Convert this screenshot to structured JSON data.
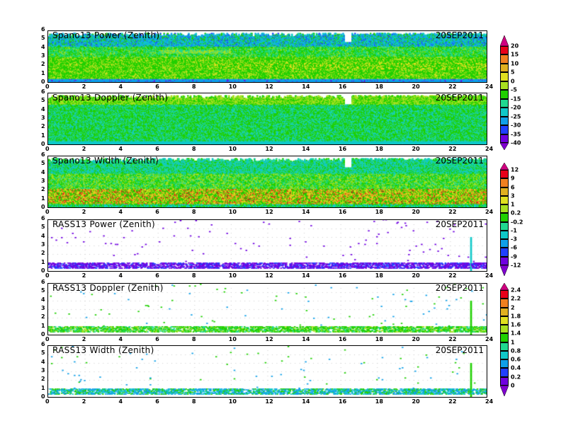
{
  "chart_data": [
    {
      "type": "heatmap",
      "title": "Spano13 Power (Zenith)",
      "date": "20SEP2011",
      "xlim": [
        0,
        24
      ],
      "ylim": [
        0,
        6
      ],
      "xticks": [
        0,
        2,
        4,
        6,
        8,
        10,
        12,
        14,
        16,
        18,
        20,
        22,
        24
      ],
      "yticks": [
        0,
        1,
        2,
        3,
        4,
        5,
        6
      ],
      "pattern": "power"
    },
    {
      "type": "heatmap",
      "title": "Spano13 Doppler (Zenith)",
      "date": "20SEP2011",
      "xlim": [
        0,
        24
      ],
      "ylim": [
        0,
        6
      ],
      "xticks": [
        0,
        2,
        4,
        6,
        8,
        10,
        12,
        14,
        16,
        18,
        20,
        22,
        24
      ],
      "yticks": [
        0,
        1,
        2,
        3,
        4,
        5,
        6
      ],
      "pattern": "doppler"
    },
    {
      "type": "heatmap",
      "title": "Spano13 Width (Zenith)",
      "date": "20SEP2011",
      "xlim": [
        0,
        24
      ],
      "ylim": [
        0,
        6
      ],
      "xticks": [
        0,
        2,
        4,
        6,
        8,
        10,
        12,
        14,
        16,
        18,
        20,
        22,
        24
      ],
      "yticks": [
        0,
        1,
        2,
        3,
        4,
        5,
        6
      ],
      "pattern": "width"
    },
    {
      "type": "heatmap",
      "title": "RASS13 Power (Zenith)",
      "date": "20SEP2011",
      "xlim": [
        0,
        24
      ],
      "ylim": [
        0,
        6
      ],
      "xticks": [
        0,
        2,
        4,
        6,
        8,
        10,
        12,
        14,
        16,
        18,
        20,
        22,
        24
      ],
      "yticks": [
        0,
        1,
        2,
        3,
        4,
        5,
        6
      ],
      "pattern": "rass-power"
    },
    {
      "type": "heatmap",
      "title": "RASS13 Doppler (Zenith)",
      "date": "20SEP2011",
      "xlim": [
        0,
        24
      ],
      "ylim": [
        0,
        6
      ],
      "xticks": [
        0,
        2,
        4,
        6,
        8,
        10,
        12,
        14,
        16,
        18,
        20,
        22,
        24
      ],
      "yticks": [
        0,
        1,
        2,
        3,
        4,
        5,
        6
      ],
      "pattern": "rass-doppler"
    },
    {
      "type": "heatmap",
      "title": "RASS13 Width (Zenith)",
      "date": "20SEP2011",
      "xlim": [
        0,
        24
      ],
      "ylim": [
        0,
        6
      ],
      "xticks": [
        0,
        2,
        4,
        6,
        8,
        10,
        12,
        14,
        16,
        18,
        20,
        22,
        24
      ],
      "yticks": [
        0,
        1,
        2,
        3,
        4,
        5,
        6
      ],
      "pattern": "rass-width"
    }
  ],
  "colorbars": [
    {
      "labels": [
        "20",
        "15",
        "10",
        "5",
        "0",
        "-5",
        "-15",
        "-20",
        "-25",
        "-30",
        "-35",
        "-40"
      ]
    },
    {
      "labels": [
        "12",
        "9",
        "6",
        "3",
        "1",
        "0.2",
        "-0.2",
        "-1",
        "-3",
        "-6",
        "-9",
        "-12"
      ]
    },
    {
      "labels": [
        "2.4",
        "2.2",
        "2",
        "1.8",
        "1.6",
        "1.4",
        "1",
        "0.8",
        "0.6",
        "0.4",
        "0.2",
        "0"
      ]
    }
  ],
  "palette": [
    "#e8001a",
    "#f08020",
    "#e0b020",
    "#e0e020",
    "#a8e020",
    "#20d000",
    "#20d890",
    "#10c8c8",
    "#10a0e8",
    "#2040ff",
    "#7000e0"
  ],
  "over_color": "#d00080",
  "under_color": "#8000d0"
}
